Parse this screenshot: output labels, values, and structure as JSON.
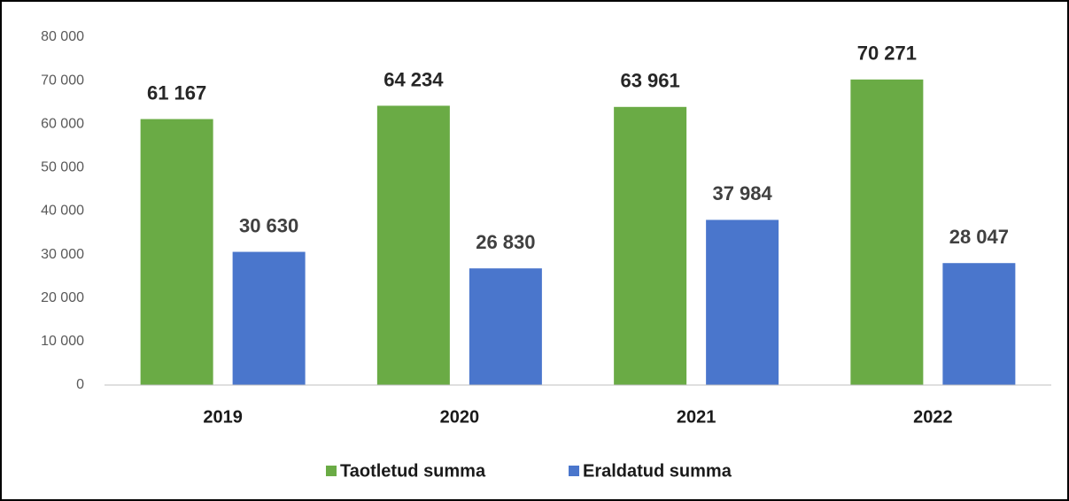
{
  "chart_data": {
    "type": "bar",
    "categories": [
      "2019",
      "2020",
      "2021",
      "2022"
    ],
    "series": [
      {
        "name": "Taotletud summa",
        "color": "#6aab45",
        "values": [
          61167,
          64234,
          63961,
          70271
        ],
        "value_labels": [
          "61 167",
          "64 234",
          "63 961",
          "70 271"
        ]
      },
      {
        "name": "Eraldatud summa",
        "color": "#4a76cc",
        "values": [
          30630,
          26830,
          37984,
          28047
        ],
        "value_labels": [
          "30 630",
          "26 830",
          "37 984",
          "28 047"
        ]
      }
    ],
    "ylim": [
      0,
      80000
    ],
    "yticks": [
      {
        "value": 0,
        "label": "0"
      },
      {
        "value": 10000,
        "label": "10 000"
      },
      {
        "value": 20000,
        "label": "20 000"
      },
      {
        "value": 30000,
        "label": "30 000"
      },
      {
        "value": 40000,
        "label": "40 000"
      },
      {
        "value": 50000,
        "label": "50 000"
      },
      {
        "value": 60000,
        "label": "60 000"
      },
      {
        "value": 70000,
        "label": "70 000"
      },
      {
        "value": 80000,
        "label": "80 000"
      }
    ],
    "grid": false,
    "legend": "bottom"
  }
}
